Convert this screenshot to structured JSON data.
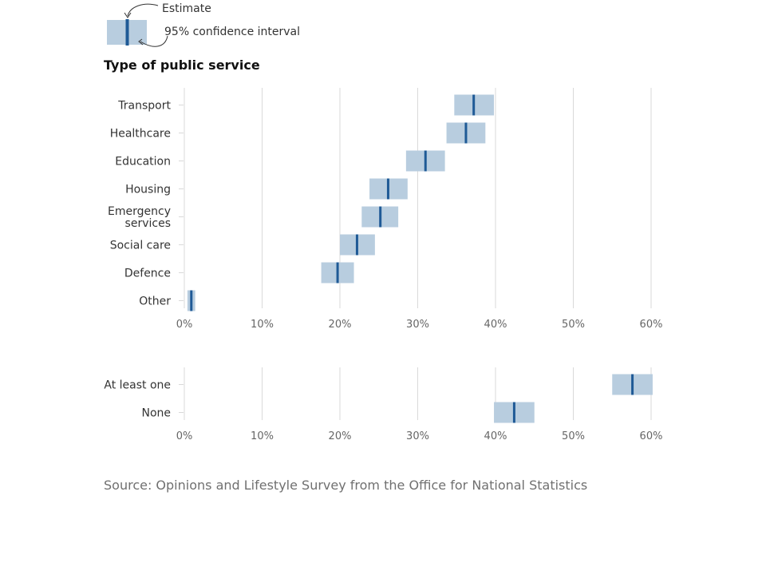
{
  "legend": {
    "estimate_label": "Estimate",
    "ci_label": "95% confidence interval"
  },
  "heading": "Type of public service",
  "source": "Source: Opinions and Lifestyle Survey from the Office for National Statistics",
  "colors": {
    "interval": "#b8cddf",
    "estimate": "#1f5a96",
    "grid": "#d9d9d9",
    "tick_text": "#666666"
  },
  "chart_data": [
    {
      "type": "interval",
      "xlim": [
        0,
        60
      ],
      "xticks": [
        "0%",
        "10%",
        "20%",
        "30%",
        "40%",
        "50%",
        "60%"
      ],
      "grid": true,
      "categories": [
        {
          "label": [
            "Transport"
          ],
          "estimate": 37.2,
          "low": 34.7,
          "high": 39.8
        },
        {
          "label": [
            "Healthcare"
          ],
          "estimate": 36.2,
          "low": 33.7,
          "high": 38.7
        },
        {
          "label": [
            "Education"
          ],
          "estimate": 31.0,
          "low": 28.5,
          "high": 33.5
        },
        {
          "label": [
            "Housing"
          ],
          "estimate": 26.2,
          "low": 23.8,
          "high": 28.7
        },
        {
          "label": [
            "Emergency",
            "services"
          ],
          "estimate": 25.2,
          "low": 22.8,
          "high": 27.5
        },
        {
          "label": [
            "Social care"
          ],
          "estimate": 22.2,
          "low": 20.0,
          "high": 24.5
        },
        {
          "label": [
            "Defence"
          ],
          "estimate": 19.7,
          "low": 17.6,
          "high": 21.8
        },
        {
          "label": [
            "Other"
          ],
          "estimate": 0.9,
          "low": 0.4,
          "high": 1.4
        }
      ]
    },
    {
      "type": "interval",
      "xlim": [
        0,
        60
      ],
      "xticks": [
        "0%",
        "10%",
        "20%",
        "30%",
        "40%",
        "50%",
        "60%"
      ],
      "grid": true,
      "categories": [
        {
          "label": [
            "At least one"
          ],
          "estimate": 57.6,
          "low": 55.0,
          "high": 60.2
        },
        {
          "label": [
            "None"
          ],
          "estimate": 42.4,
          "low": 39.8,
          "high": 45.0
        }
      ]
    }
  ]
}
